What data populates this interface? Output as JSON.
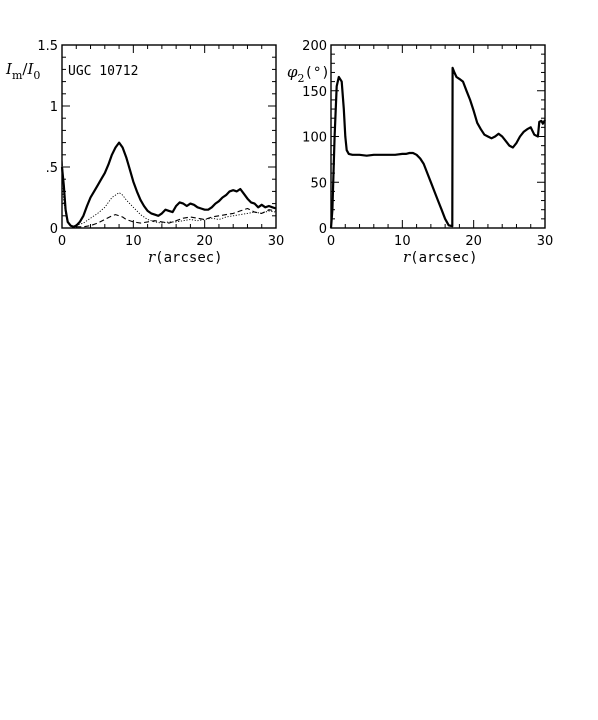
{
  "chart_data": [
    {
      "type": "line",
      "annotation": "UGC 10712",
      "ylabel_main": "I",
      "ylabel_sub1": "m",
      "ylabel_slash": "/",
      "ylabel_main2": "I",
      "ylabel_sub2": "0",
      "xlabel_var": "r",
      "xlabel_unit": "(arcsec)",
      "xlim": [
        0,
        30
      ],
      "ylim": [
        0,
        1.5
      ],
      "xticks": [
        0,
        10,
        20,
        30
      ],
      "yticks": [
        {
          "v": 0,
          "t": "0"
        },
        {
          "v": 0.5,
          "t": ".5"
        },
        {
          "v": 1,
          "t": "1"
        },
        {
          "v": 1.5,
          "t": "1.5"
        }
      ],
      "series": [
        {
          "style": "solid-thick",
          "x": [
            0,
            0.25,
            0.5,
            0.8,
            1.2,
            1.6,
            2.0,
            2.5,
            3,
            3.5,
            4,
            4.5,
            5,
            5.5,
            6,
            6.5,
            7,
            7.5,
            8,
            8.5,
            9,
            9.5,
            10,
            10.5,
            11,
            11.5,
            12,
            12.5,
            13,
            13.5,
            14,
            14.5,
            15,
            15.5,
            16,
            16.5,
            17,
            17.5,
            18,
            18.5,
            19,
            19.5,
            20,
            20.5,
            21,
            21.5,
            22,
            22.5,
            23,
            23.5,
            24,
            24.5,
            25,
            25.5,
            26,
            26.5,
            27,
            27.5,
            28,
            28.5,
            29,
            29.5,
            30
          ],
          "y": [
            0.5,
            0.35,
            0.15,
            0.05,
            0.02,
            0.01,
            0.02,
            0.05,
            0.1,
            0.18,
            0.25,
            0.3,
            0.35,
            0.4,
            0.45,
            0.52,
            0.6,
            0.66,
            0.7,
            0.66,
            0.58,
            0.48,
            0.38,
            0.3,
            0.23,
            0.18,
            0.14,
            0.12,
            0.11,
            0.1,
            0.12,
            0.15,
            0.14,
            0.13,
            0.18,
            0.21,
            0.2,
            0.18,
            0.2,
            0.19,
            0.17,
            0.16,
            0.15,
            0.15,
            0.17,
            0.2,
            0.22,
            0.25,
            0.27,
            0.3,
            0.31,
            0.3,
            0.32,
            0.28,
            0.24,
            0.21,
            0.2,
            0.17,
            0.19,
            0.17,
            0.18,
            0.17,
            0.16
          ]
        },
        {
          "style": "dotted",
          "x": [
            0,
            0.3,
            0.6,
            1,
            1.5,
            2,
            2.5,
            3,
            4,
            5,
            6,
            6.5,
            7,
            7.5,
            8,
            8.5,
            9,
            10,
            11,
            12,
            13,
            14,
            15,
            16,
            17,
            18,
            19,
            20,
            21,
            22,
            23,
            24,
            25,
            26,
            27,
            28,
            29,
            30
          ],
          "y": [
            0.35,
            0.2,
            0.08,
            0.03,
            0.01,
            0.02,
            0.03,
            0.04,
            0.08,
            0.12,
            0.17,
            0.21,
            0.25,
            0.27,
            0.29,
            0.27,
            0.23,
            0.17,
            0.11,
            0.07,
            0.05,
            0.04,
            0.05,
            0.05,
            0.06,
            0.07,
            0.06,
            0.07,
            0.08,
            0.07,
            0.09,
            0.1,
            0.11,
            0.12,
            0.13,
            0.12,
            0.14,
            0.13
          ]
        },
        {
          "style": "dashed",
          "x": [
            0,
            0.3,
            0.6,
            1,
            1.5,
            2,
            3,
            4,
            5,
            6,
            7,
            7.5,
            8,
            8.5,
            9,
            10,
            11,
            12,
            13,
            14,
            15,
            16,
            17,
            18,
            19,
            20,
            21,
            22,
            23,
            24,
            25,
            26,
            27,
            28,
            29,
            30
          ],
          "y": [
            0.55,
            0.3,
            0.1,
            0.03,
            0.01,
            0.01,
            0.01,
            0.02,
            0.04,
            0.07,
            0.1,
            0.11,
            0.1,
            0.09,
            0.07,
            0.05,
            0.04,
            0.05,
            0.06,
            0.05,
            0.04,
            0.06,
            0.08,
            0.09,
            0.08,
            0.07,
            0.09,
            0.1,
            0.11,
            0.12,
            0.14,
            0.16,
            0.13,
            0.12,
            0.15,
            0.14
          ]
        }
      ]
    },
    {
      "type": "line",
      "ylabel_main": "φ",
      "ylabel_sub": "2",
      "ylabel_unit": "(°)",
      "xlabel_var": "r",
      "xlabel_unit": "(arcsec)",
      "xlim": [
        0,
        30
      ],
      "ylim": [
        0,
        200
      ],
      "xticks": [
        0,
        10,
        20,
        30
      ],
      "yticks": [
        {
          "v": 0,
          "t": "0"
        },
        {
          "v": 50,
          "t": "50"
        },
        {
          "v": 100,
          "t": "100"
        },
        {
          "v": 150,
          "t": "150"
        },
        {
          "v": 200,
          "t": "200"
        }
      ],
      "series": [
        {
          "style": "solid-thick",
          "x": [
            0,
            0.2,
            0.5,
            0.8,
            1.1,
            1.5,
            1.8,
            2.0,
            2.2,
            2.5,
            3,
            4,
            5,
            6,
            7,
            8,
            9,
            10,
            10.5,
            11,
            11.5,
            12,
            12.5,
            13,
            13.5,
            14,
            14.5,
            15,
            15.5,
            16,
            16.5,
            17,
            17.05,
            17.3,
            17.6,
            18,
            18.5,
            19,
            19.5,
            20,
            20.5,
            21,
            21.5,
            22,
            22.5,
            23,
            23.5,
            24,
            24.5,
            25,
            25.5,
            26,
            26.5,
            27,
            27.5,
            28,
            28.5,
            29,
            29.2,
            29.5,
            29.7,
            30
          ],
          "y": [
            0,
            20,
            100,
            155,
            165,
            160,
            130,
            100,
            85,
            81,
            80,
            80,
            79,
            80,
            80,
            80,
            80,
            81,
            81,
            82,
            82,
            80,
            76,
            70,
            60,
            50,
            40,
            30,
            20,
            10,
            3,
            2,
            175,
            170,
            165,
            163,
            160,
            150,
            140,
            128,
            115,
            108,
            102,
            100,
            98,
            100,
            103,
            100,
            95,
            90,
            88,
            93,
            100,
            105,
            108,
            110,
            102,
            100,
            116,
            117,
            114,
            118
          ]
        }
      ]
    }
  ]
}
